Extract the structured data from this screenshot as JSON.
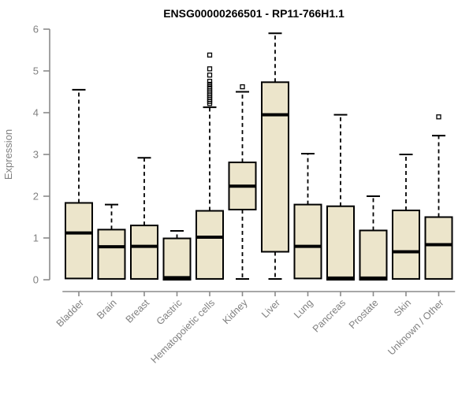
{
  "chart_data": {
    "type": "boxplot",
    "title": "ENSG00000266501 - RP11-766H1.1",
    "ylabel": "Expression",
    "xlabel": "",
    "ylim": [
      0,
      6
    ],
    "yticks": [
      0,
      1,
      2,
      3,
      4,
      5,
      6
    ],
    "grid": false,
    "legend": false,
    "box_fill_color": "#ece5cb",
    "box_border_color": "#000000",
    "median_color": "#000000",
    "axis_color": "#8a8a8a",
    "label_color": "#808080",
    "title_color": "#000000",
    "categories": [
      "Bladder",
      "Brain",
      "Breast",
      "Gastric",
      "Hematopoietic cells",
      "Kidney",
      "Liver",
      "Lung",
      "Pancreas",
      "Prostate",
      "Skin",
      "Unknown / Other"
    ],
    "boxes": [
      {
        "category": "Bladder",
        "whisker_low": 0.03,
        "q1": 0.03,
        "median": 1.12,
        "q3": 1.84,
        "whisker_high": 4.55,
        "outliers": []
      },
      {
        "category": "Brain",
        "whisker_low": 0.02,
        "q1": 0.02,
        "median": 0.79,
        "q3": 1.2,
        "whisker_high": 1.8,
        "outliers": []
      },
      {
        "category": "Breast",
        "whisker_low": 0.02,
        "q1": 0.02,
        "median": 0.8,
        "q3": 1.3,
        "whisker_high": 2.92,
        "outliers": []
      },
      {
        "category": "Gastric",
        "whisker_low": 0.0,
        "q1": 0.0,
        "median": 0.05,
        "q3": 0.99,
        "whisker_high": 1.17,
        "outliers": []
      },
      {
        "category": "Hematopoietic cells",
        "whisker_low": 0.02,
        "q1": 0.02,
        "median": 1.02,
        "q3": 1.65,
        "whisker_high": 4.13,
        "outliers": [
          4.22,
          4.27,
          4.32,
          4.37,
          4.42,
          4.47,
          4.52,
          4.57,
          4.62,
          4.68,
          4.75,
          4.9,
          5.05,
          5.38
        ]
      },
      {
        "category": "Kidney",
        "whisker_low": 0.02,
        "q1": 1.68,
        "median": 2.24,
        "q3": 2.81,
        "whisker_high": 4.5,
        "outliers": [
          4.62
        ]
      },
      {
        "category": "Liver",
        "whisker_low": 0.02,
        "q1": 0.67,
        "median": 3.95,
        "q3": 4.73,
        "whisker_high": 5.9,
        "outliers": []
      },
      {
        "category": "Lung",
        "whisker_low": 0.03,
        "q1": 0.03,
        "median": 0.8,
        "q3": 1.8,
        "whisker_high": 3.02,
        "outliers": []
      },
      {
        "category": "Pancreas",
        "whisker_low": 0.0,
        "q1": 0.0,
        "median": 0.04,
        "q3": 1.76,
        "whisker_high": 3.95,
        "outliers": []
      },
      {
        "category": "Prostate",
        "whisker_low": 0.0,
        "q1": 0.0,
        "median": 0.04,
        "q3": 1.18,
        "whisker_high": 2.0,
        "outliers": []
      },
      {
        "category": "Skin",
        "whisker_low": 0.02,
        "q1": 0.02,
        "median": 0.67,
        "q3": 1.66,
        "whisker_high": 3.0,
        "outliers": []
      },
      {
        "category": "Unknown / Other",
        "whisker_low": 0.02,
        "q1": 0.02,
        "median": 0.84,
        "q3": 1.5,
        "whisker_high": 3.45,
        "outliers": [
          3.9
        ]
      }
    ]
  }
}
